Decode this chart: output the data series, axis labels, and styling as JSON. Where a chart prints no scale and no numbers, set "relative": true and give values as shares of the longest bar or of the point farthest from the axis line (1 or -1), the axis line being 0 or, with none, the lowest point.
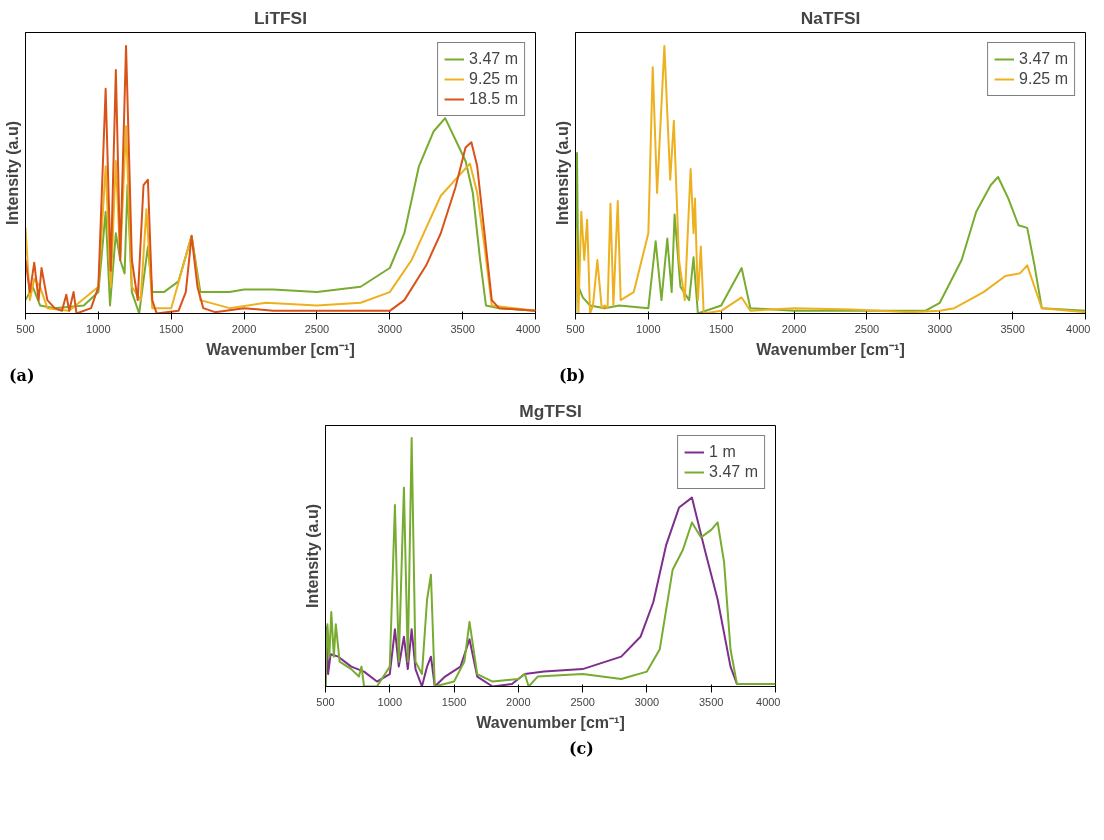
{
  "chart_data": [
    {
      "type": "line",
      "title": "LiTFSI",
      "xlabel": "Wavenumber [cm⁻¹]",
      "ylabel": "Intensity (a.u)",
      "relative": true,
      "xlim": [
        500,
        4000
      ],
      "xticks": [
        500,
        1000,
        1500,
        2000,
        2500,
        3000,
        3500,
        4000
      ],
      "legend": "top right",
      "annotations": [
        "(a)"
      ],
      "series": [
        {
          "name": "3.47 m",
          "color": "#77ac30",
          "x": [
            500,
            550,
            600,
            700,
            900,
            1000,
            1050,
            1080,
            1120,
            1150,
            1180,
            1200,
            1230,
            1280,
            1340,
            1370,
            1450,
            1550,
            1640,
            1700,
            1900,
            2000,
            2200,
            2500,
            2800,
            3000,
            3100,
            3200,
            3300,
            3380,
            3450,
            3520,
            3570,
            3620,
            3660,
            3750,
            4000
          ],
          "values": [
            0.05,
            0.1,
            0.03,
            0.02,
            0.03,
            0.08,
            0.38,
            0.03,
            0.3,
            0.2,
            0.15,
            0.48,
            0.08,
            0.0,
            0.25,
            0.08,
            0.08,
            0.12,
            0.29,
            0.08,
            0.08,
            0.09,
            0.09,
            0.08,
            0.1,
            0.17,
            0.3,
            0.55,
            0.68,
            0.73,
            0.65,
            0.57,
            0.45,
            0.2,
            0.03,
            0.02,
            0.01
          ]
        },
        {
          "name": "9.25 m",
          "color": "#edb120",
          "x": [
            500,
            530,
            560,
            600,
            650,
            800,
            1000,
            1050,
            1085,
            1120,
            1150,
            1190,
            1230,
            1290,
            1330,
            1370,
            1500,
            1640,
            1700,
            1900,
            2150,
            2500,
            2800,
            3000,
            3150,
            3250,
            3350,
            3450,
            3550,
            3600,
            3650,
            3700,
            4000
          ],
          "values": [
            0.32,
            0.05,
            0.13,
            0.1,
            0.02,
            0.01,
            0.1,
            0.55,
            0.1,
            0.57,
            0.2,
            0.7,
            0.1,
            0.05,
            0.39,
            0.02,
            0.02,
            0.29,
            0.05,
            0.02,
            0.04,
            0.03,
            0.04,
            0.08,
            0.2,
            0.32,
            0.44,
            0.5,
            0.56,
            0.45,
            0.25,
            0.03,
            0.01
          ]
        },
        {
          "name": "18.5 m",
          "color": "#d95319",
          "x": [
            500,
            530,
            560,
            590,
            610,
            650,
            700,
            750,
            780,
            800,
            830,
            850,
            950,
            1000,
            1050,
            1085,
            1120,
            1150,
            1190,
            1230,
            1270,
            1310,
            1340,
            1370,
            1400,
            1550,
            1600,
            1640,
            1680,
            1720,
            1800,
            2000,
            2200,
            2500,
            2800,
            3000,
            3100,
            3250,
            3350,
            3450,
            3520,
            3560,
            3600,
            3650,
            3700,
            3750,
            4000
          ],
          "values": [
            0.2,
            0.08,
            0.19,
            0.05,
            0.17,
            0.05,
            0.02,
            0.01,
            0.07,
            0.01,
            0.08,
            0.0,
            0.02,
            0.1,
            0.84,
            0.16,
            0.91,
            0.2,
            1.0,
            0.2,
            0.05,
            0.48,
            0.5,
            0.05,
            0.0,
            0.01,
            0.08,
            0.29,
            0.1,
            0.02,
            0.005,
            0.02,
            0.01,
            0.01,
            0.01,
            0.01,
            0.05,
            0.18,
            0.3,
            0.47,
            0.62,
            0.64,
            0.55,
            0.3,
            0.05,
            0.02,
            0.01
          ]
        }
      ]
    },
    {
      "type": "line",
      "title": "NaTFSI",
      "xlabel": "Wavenumber [cm⁻¹]",
      "ylabel": "Intensity (a.u)",
      "relative": true,
      "xlim": [
        500,
        4000
      ],
      "xticks": [
        500,
        1000,
        1500,
        2000,
        2500,
        3000,
        3500,
        4000
      ],
      "legend": "top right",
      "annotations": [
        "(b)"
      ],
      "series": [
        {
          "name": "3.47 m",
          "color": "#77ac30",
          "x": [
            500,
            510,
            520,
            550,
            600,
            700,
            800,
            1000,
            1050,
            1090,
            1130,
            1160,
            1180,
            1220,
            1280,
            1310,
            1340,
            1500,
            1640,
            1700,
            2000,
            2500,
            2900,
            3000,
            3150,
            3250,
            3350,
            3400,
            3470,
            3540,
            3600,
            3650,
            3700,
            4000
          ],
          "values": [
            0.0,
            0.6,
            0.1,
            0.06,
            0.03,
            0.02,
            0.03,
            0.02,
            0.27,
            0.05,
            0.28,
            0.08,
            0.37,
            0.1,
            0.05,
            0.21,
            0.0,
            0.03,
            0.17,
            0.02,
            0.01,
            0.01,
            0.01,
            0.04,
            0.2,
            0.38,
            0.48,
            0.51,
            0.43,
            0.33,
            0.32,
            0.18,
            0.02,
            0.01
          ]
        },
        {
          "name": "9.25 m",
          "color": "#edb120",
          "x": [
            500,
            520,
            540,
            560,
            580,
            600,
            620,
            650,
            680,
            700,
            720,
            740,
            760,
            790,
            810,
            900,
            1000,
            1030,
            1060,
            1110,
            1150,
            1175,
            1210,
            1250,
            1290,
            1310,
            1320,
            1340,
            1360,
            1380,
            1500,
            1640,
            1700,
            2000,
            2400,
            2800,
            3000,
            3100,
            3300,
            3450,
            3550,
            3600,
            3650,
            3700,
            4000
          ],
          "values": [
            0.32,
            0.0,
            0.38,
            0.2,
            0.35,
            0.0,
            0.03,
            0.2,
            0.02,
            0.03,
            0.02,
            0.41,
            0.03,
            0.42,
            0.05,
            0.08,
            0.3,
            0.92,
            0.45,
            1.0,
            0.5,
            0.72,
            0.2,
            0.05,
            0.54,
            0.3,
            0.43,
            0.05,
            0.25,
            0.0,
            0.01,
            0.06,
            0.01,
            0.02,
            0.015,
            0.005,
            0.01,
            0.02,
            0.08,
            0.14,
            0.15,
            0.18,
            0.1,
            0.02,
            0.005
          ]
        }
      ]
    },
    {
      "type": "line",
      "title": "MgTFSI",
      "xlabel": "Wavenumber [cm⁻¹]",
      "ylabel": "Intensity (a.u)",
      "relative": true,
      "xlim": [
        500,
        4000
      ],
      "xticks": [
        500,
        1000,
        1500,
        2000,
        2500,
        3000,
        3500,
        4000
      ],
      "legend": "top right",
      "annotations": [
        "(c)"
      ],
      "series": [
        {
          "name": "1 m",
          "color": "#7e2f8e",
          "x": [
            500,
            510,
            520,
            540,
            600,
            700,
            800,
            900,
            1000,
            1040,
            1070,
            1110,
            1140,
            1170,
            1200,
            1250,
            1290,
            1320,
            1350,
            1430,
            1550,
            1620,
            1680,
            1800,
            1950,
            2050,
            2200,
            2500,
            2800,
            2950,
            3050,
            3150,
            3250,
            3350,
            3450,
            3550,
            3650,
            3700,
            4000
          ],
          "values": [
            0.0,
            0.24,
            0.05,
            0.13,
            0.12,
            0.08,
            0.06,
            0.02,
            0.05,
            0.23,
            0.08,
            0.2,
            0.07,
            0.23,
            0.07,
            0.0,
            0.08,
            0.12,
            0.0,
            0.04,
            0.08,
            0.19,
            0.04,
            0.0,
            0.01,
            0.05,
            0.06,
            0.07,
            0.12,
            0.2,
            0.34,
            0.57,
            0.72,
            0.76,
            0.55,
            0.35,
            0.08,
            0.01,
            0.01
          ]
        },
        {
          "name": "3.47 m",
          "color": "#77ac30",
          "x": [
            500,
            515,
            530,
            545,
            565,
            580,
            610,
            700,
            760,
            780,
            800,
            900,
            1000,
            1040,
            1070,
            1110,
            1140,
            1170,
            1200,
            1250,
            1290,
            1320,
            1350,
            1500,
            1580,
            1620,
            1680,
            1800,
            2000,
            2050,
            2080,
            2150,
            2500,
            2800,
            3000,
            3100,
            3200,
            3280,
            3350,
            3420,
            3500,
            3550,
            3600,
            3650,
            3700,
            4000
          ],
          "values": [
            0.0,
            0.25,
            0.12,
            0.3,
            0.12,
            0.25,
            0.1,
            0.07,
            0.04,
            0.08,
            0.0,
            0.0,
            0.08,
            0.73,
            0.1,
            0.8,
            0.1,
            1.0,
            0.1,
            0.05,
            0.35,
            0.45,
            0.0,
            0.02,
            0.1,
            0.26,
            0.05,
            0.02,
            0.03,
            0.05,
            0.0,
            0.04,
            0.05,
            0.03,
            0.06,
            0.15,
            0.47,
            0.55,
            0.66,
            0.6,
            0.63,
            0.66,
            0.5,
            0.15,
            0.01,
            0.01
          ]
        }
      ]
    }
  ]
}
